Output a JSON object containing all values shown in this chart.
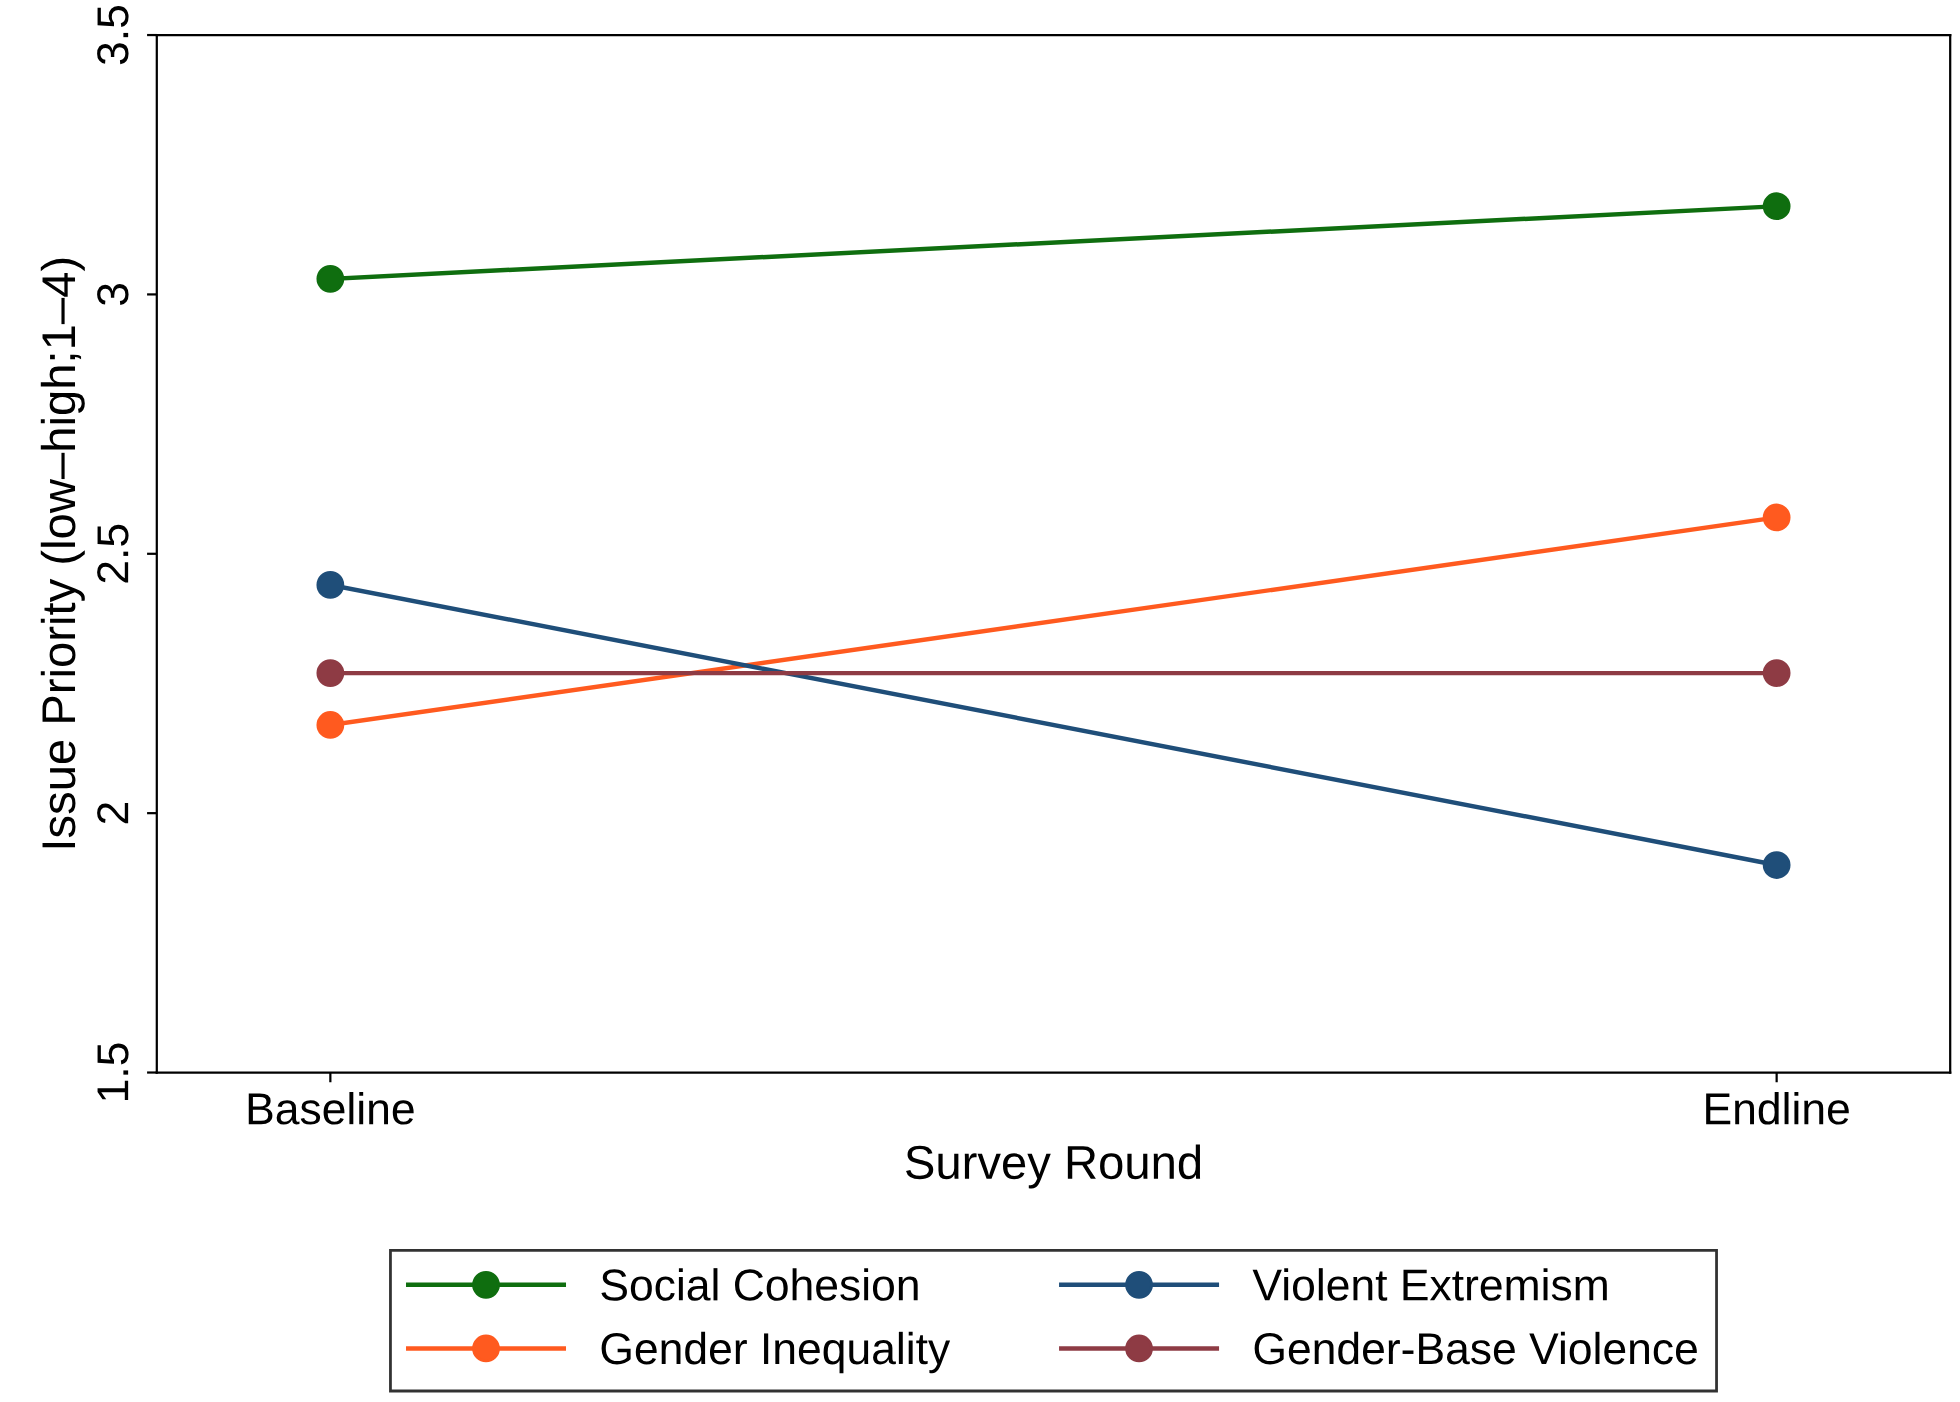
{
  "chart_data": {
    "type": "line",
    "xlabel": "Survey Round",
    "ylabel": "Issue Priority (low–high;1–4)",
    "categories": [
      "Baseline",
      "Endline"
    ],
    "series": [
      {
        "name": "Social Cohesion",
        "color": "#0f6e0f",
        "values": [
          3.03,
          3.17
        ]
      },
      {
        "name": "Gender Inequality",
        "color": "#ff5a1f",
        "values": [
          2.17,
          2.57
        ]
      },
      {
        "name": "Violent Extremism",
        "color": "#1f4e79",
        "values": [
          2.44,
          1.9
        ]
      },
      {
        "name": "Gender-Base Violence",
        "color": "#8e3b44",
        "values": [
          2.27,
          2.27
        ]
      }
    ],
    "ylim": [
      1.5,
      3.5
    ],
    "yticks": [
      1.5,
      2,
      2.5,
      3,
      3.5
    ],
    "grid": false,
    "legend": "bottom",
    "marker": "circle",
    "line_style": "solid"
  }
}
